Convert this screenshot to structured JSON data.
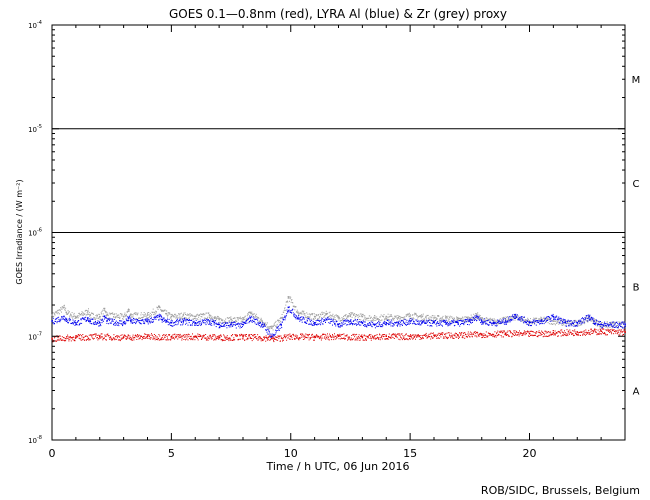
{
  "chart_data": {
    "type": "scatter",
    "title": "GOES 0.1—0.8nm (red), LYRA Al (blue) & Zr (grey) proxy",
    "xlabel": "Time / h UTC, 06 Jun 2016",
    "ylabel": "GOES Irradiance / (W m⁻²)",
    "y_scale": "log",
    "xlim": [
      0,
      24
    ],
    "ylim": [
      1e-08,
      0.0001
    ],
    "x_ticks": [
      0,
      5,
      10,
      15,
      20
    ],
    "y_ticks": [
      {
        "value": 1e-08,
        "label_base": "10",
        "label_exp": "-8"
      },
      {
        "value": 1e-07,
        "label_base": "10",
        "label_exp": "-7"
      },
      {
        "value": 1e-06,
        "label_base": "10",
        "label_exp": "-6"
      },
      {
        "value": 1e-05,
        "label_base": "10",
        "label_exp": "-5"
      },
      {
        "value": 0.0001,
        "label_base": "10",
        "label_exp": "-4"
      }
    ],
    "threshold_lines": [
      1e-06,
      1e-05
    ],
    "flare_classes": [
      {
        "label": "A",
        "value": 3e-08
      },
      {
        "label": "B",
        "value": 3e-07
      },
      {
        "label": "C",
        "value": 3e-06
      },
      {
        "label": "M",
        "value": 3e-05
      }
    ],
    "series": [
      {
        "color": "#a0a0a0",
        "x": [
          0,
          0.5,
          0.6,
          1,
          1.5,
          1.6,
          2,
          2.2,
          2.3,
          3,
          3.2,
          3.3,
          4,
          4.5,
          4.6,
          4.8,
          5,
          5.5,
          6,
          6.6,
          6.8,
          7,
          7.5,
          8,
          8.3,
          8.8,
          9.2,
          9.6,
          9.9,
          10.3,
          11,
          11.5,
          12,
          12.5,
          13,
          13.5,
          14,
          14.5,
          15,
          15.5,
          16,
          16.5,
          17,
          17.5,
          17.8,
          18,
          18.5,
          19,
          19.4,
          20,
          20.5,
          21,
          21.5,
          22,
          22.5,
          22.7,
          23,
          24
        ],
        "y": [
          1.6e-07,
          1.9e-07,
          1.7e-07,
          1.55e-07,
          1.75e-07,
          1.6e-07,
          1.55e-07,
          1.85e-07,
          1.6e-07,
          1.55e-07,
          1.8e-07,
          1.6e-07,
          1.6e-07,
          1.9e-07,
          1.75e-07,
          1.65e-07,
          1.55e-07,
          1.6e-07,
          1.55e-07,
          1.6e-07,
          1.5e-07,
          1.45e-07,
          1.45e-07,
          1.45e-07,
          1.7e-07,
          1.4e-07,
          1.2e-07,
          1.5e-07,
          2.4e-07,
          1.7e-07,
          1.55e-07,
          1.65e-07,
          1.5e-07,
          1.6e-07,
          1.55e-07,
          1.5e-07,
          1.55e-07,
          1.5e-07,
          1.6e-07,
          1.55e-07,
          1.5e-07,
          1.5e-07,
          1.45e-07,
          1.5e-07,
          1.6e-07,
          1.45e-07,
          1.4e-07,
          1.45e-07,
          1.55e-07,
          1.4e-07,
          1.45e-07,
          1.4e-07,
          1.35e-07,
          1.35e-07,
          1.5e-07,
          1.4e-07,
          1.3e-07,
          1.3e-07
        ]
      },
      {
        "color": "#0000ee",
        "x": [
          0,
          0.5,
          0.6,
          1,
          1.5,
          1.6,
          2,
          2.2,
          2.3,
          3,
          3.2,
          3.3,
          4,
          4.5,
          4.6,
          4.8,
          5,
          5.5,
          6,
          6.6,
          6.8,
          7,
          7.5,
          8,
          8.3,
          8.8,
          9.2,
          9.6,
          9.9,
          10.3,
          11,
          11.5,
          12,
          12.5,
          13,
          13.5,
          14,
          14.5,
          15,
          15.5,
          16,
          16.5,
          17,
          17.5,
          17.8,
          18,
          18.5,
          19,
          19.4,
          20,
          20.5,
          21,
          21.5,
          22,
          22.5,
          22.7,
          23,
          24
        ],
        "y": [
          1.4e-07,
          1.55e-07,
          1.45e-07,
          1.35e-07,
          1.5e-07,
          1.4e-07,
          1.35e-07,
          1.55e-07,
          1.4e-07,
          1.35e-07,
          1.5e-07,
          1.4e-07,
          1.4e-07,
          1.55e-07,
          1.45e-07,
          1.4e-07,
          1.35e-07,
          1.4e-07,
          1.35e-07,
          1.4e-07,
          1.35e-07,
          1.3e-07,
          1.3e-07,
          1.3e-07,
          1.5e-07,
          1.3e-07,
          1e-07,
          1.3e-07,
          1.9e-07,
          1.5e-07,
          1.35e-07,
          1.45e-07,
          1.3e-07,
          1.4e-07,
          1.35e-07,
          1.3e-07,
          1.35e-07,
          1.35e-07,
          1.4e-07,
          1.35e-07,
          1.35e-07,
          1.35e-07,
          1.35e-07,
          1.4e-07,
          1.55e-07,
          1.4e-07,
          1.35e-07,
          1.4e-07,
          1.6e-07,
          1.35e-07,
          1.4e-07,
          1.55e-07,
          1.35e-07,
          1.35e-07,
          1.55e-07,
          1.4e-07,
          1.3e-07,
          1.3e-07
        ]
      },
      {
        "color": "#dd0000",
        "x": [
          0,
          1,
          2,
          3,
          4,
          5,
          6,
          7,
          8,
          9,
          9.3,
          10,
          11,
          12,
          13,
          14,
          15,
          16,
          17,
          18,
          19,
          20,
          21,
          22,
          23,
          24
        ],
        "y": [
          9.5e-08,
          9.8e-08,
          1e-07,
          9.8e-08,
          1e-07,
          9.9e-08,
          1e-07,
          9.8e-08,
          9.9e-08,
          9.7e-08,
          9.5e-08,
          1e-07,
          9.9e-08,
          1e-07,
          9.8e-08,
          1e-07,
          1e-07,
          1.02e-07,
          1.03e-07,
          1.05e-07,
          1.07e-07,
          1.06e-07,
          1.08e-07,
          1.1e-07,
          1.12e-07,
          1.1e-07
        ]
      }
    ]
  },
  "credit": "ROB/SIDC, Brussels, Belgium"
}
